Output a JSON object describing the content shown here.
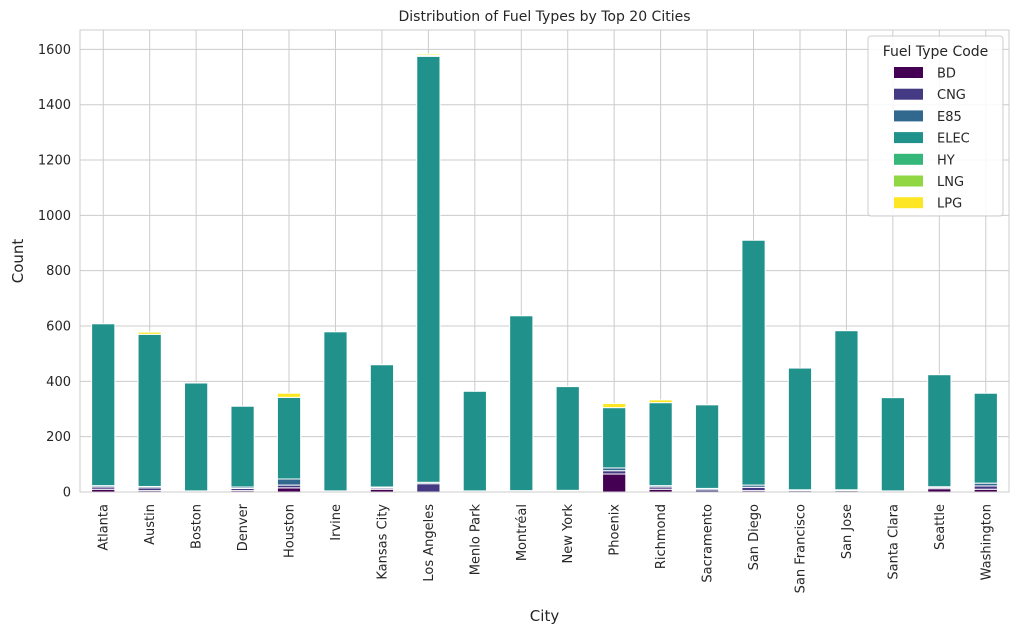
{
  "chart_data": {
    "type": "bar",
    "stacked": true,
    "title": "Distribution of Fuel Types by Top 20 Cities",
    "xlabel": "City",
    "ylabel": "Count",
    "ylim": [
      0,
      1670
    ],
    "yticks": [
      0,
      200,
      400,
      600,
      800,
      1000,
      1200,
      1400,
      1600
    ],
    "grid": true,
    "legend": {
      "title": "Fuel Type Code",
      "placement": "top-right"
    },
    "categories": [
      "Atlanta",
      "Austin",
      "Boston",
      "Denver",
      "Houston",
      "Irvine",
      "Kansas City",
      "Los Angeles",
      "Menlo Park",
      "Montréal",
      "New York",
      "Phoenix",
      "Richmond",
      "Sacramento",
      "San Diego",
      "San Francisco",
      "San Jose",
      "Santa Clara",
      "Seattle",
      "Washington"
    ],
    "series": [
      {
        "name": "BD",
        "color": "#440154",
        "values": [
          10,
          5,
          0,
          5,
          15,
          0,
          10,
          0,
          0,
          0,
          0,
          65,
          10,
          0,
          5,
          0,
          0,
          0,
          12,
          10
        ]
      },
      {
        "name": "CNG",
        "color": "#443983",
        "values": [
          8,
          10,
          2,
          8,
          10,
          2,
          5,
          30,
          2,
          3,
          3,
          12,
          8,
          8,
          12,
          5,
          5,
          2,
          5,
          12
        ]
      },
      {
        "name": "E85",
        "color": "#31688e",
        "values": [
          5,
          5,
          2,
          5,
          22,
          2,
          3,
          5,
          2,
          2,
          3,
          10,
          5,
          5,
          8,
          3,
          3,
          2,
          2,
          10
        ]
      },
      {
        "name": "ELEC",
        "color": "#21918c",
        "values": [
          585,
          550,
          390,
          292,
          295,
          575,
          442,
          1540,
          360,
          632,
          375,
          218,
          300,
          302,
          885,
          440,
          575,
          337,
          405,
          325
        ]
      },
      {
        "name": "HY",
        "color": "#35b779",
        "values": [
          0,
          0,
          0,
          0,
          0,
          0,
          0,
          3,
          0,
          0,
          0,
          0,
          0,
          0,
          0,
          0,
          0,
          0,
          0,
          0
        ]
      },
      {
        "name": "LNG",
        "color": "#90d743",
        "values": [
          0,
          0,
          0,
          0,
          0,
          0,
          0,
          0,
          0,
          0,
          0,
          0,
          0,
          0,
          0,
          0,
          0,
          0,
          0,
          0
        ]
      },
      {
        "name": "LPG",
        "color": "#fde725",
        "values": [
          0,
          8,
          0,
          0,
          15,
          0,
          0,
          5,
          0,
          0,
          0,
          15,
          10,
          0,
          0,
          0,
          0,
          0,
          0,
          0
        ]
      }
    ]
  }
}
